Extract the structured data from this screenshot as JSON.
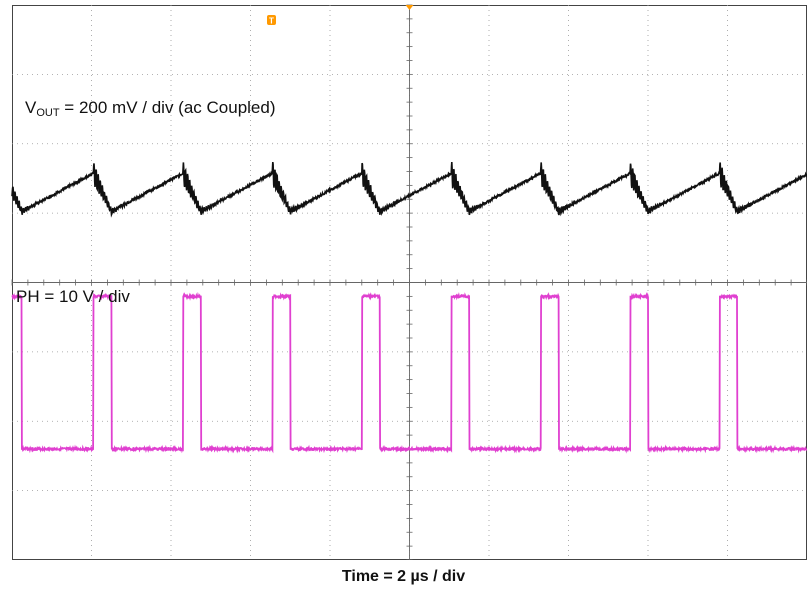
{
  "chart_data": {
    "type": "line",
    "title": "",
    "xlabel": "Time = 2 µs / div",
    "grid": true,
    "x_divisions": 10,
    "y_divisions": 8,
    "channels": [
      {
        "label_prefix": "V",
        "label_sub": "OUT",
        "label_suffix": " = 200 mV / div (ac Coupled)",
        "color": "#111111",
        "waveform": "sawtooth",
        "period_us": 2.25,
        "peak_to_peak_div": 0.55,
        "center_div": 5.3,
        "first_peak_us": 2.05
      },
      {
        "label": "PH = 10 V / div",
        "color": "#e040d0",
        "waveform": "square",
        "period_us": 2.25,
        "high_time_us": 0.45,
        "first_rise_us": 2.05,
        "high_level_div": 3.8,
        "low_level_div": 1.6
      }
    ],
    "markers": {
      "trigger_label": "T",
      "trigger_color": "#ff9900"
    }
  }
}
